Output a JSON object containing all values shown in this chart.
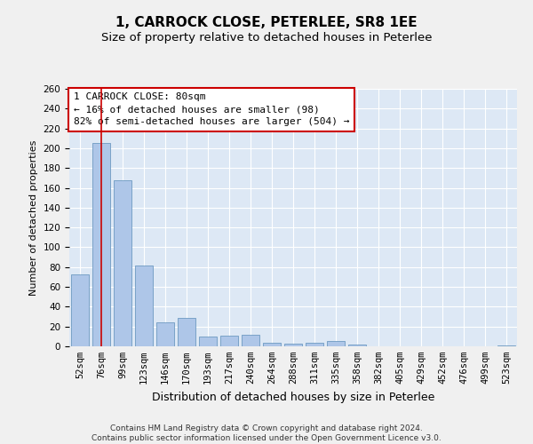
{
  "title": "1, CARROCK CLOSE, PETERLEE, SR8 1EE",
  "subtitle": "Size of property relative to detached houses in Peterlee",
  "xlabel": "Distribution of detached houses by size in Peterlee",
  "ylabel": "Number of detached properties",
  "categories": [
    "52sqm",
    "76sqm",
    "99sqm",
    "123sqm",
    "146sqm",
    "170sqm",
    "193sqm",
    "217sqm",
    "240sqm",
    "264sqm",
    "288sqm",
    "311sqm",
    "335sqm",
    "358sqm",
    "382sqm",
    "405sqm",
    "429sqm",
    "452sqm",
    "476sqm",
    "499sqm",
    "523sqm"
  ],
  "values": [
    73,
    205,
    168,
    82,
    24,
    29,
    10,
    11,
    12,
    4,
    3,
    4,
    5,
    2,
    0,
    0,
    0,
    0,
    0,
    0,
    1
  ],
  "bar_color": "#aec6e8",
  "bar_edge_color": "#5b8db8",
  "property_bar_index": 1,
  "property_line_color": "#cc0000",
  "ylim": [
    0,
    260
  ],
  "yticks": [
    0,
    20,
    40,
    60,
    80,
    100,
    120,
    140,
    160,
    180,
    200,
    220,
    240,
    260
  ],
  "annotation_text": "1 CARROCK CLOSE: 80sqm\n← 16% of detached houses are smaller (98)\n82% of semi-detached houses are larger (504) →",
  "annotation_box_color": "#ffffff",
  "annotation_box_edge_color": "#cc0000",
  "footer_text": "Contains HM Land Registry data © Crown copyright and database right 2024.\nContains public sector information licensed under the Open Government Licence v3.0.",
  "bg_color": "#dde8f5",
  "grid_color": "#ffffff",
  "fig_bg_color": "#f0f0f0",
  "title_fontsize": 11,
  "subtitle_fontsize": 9.5,
  "xlabel_fontsize": 9,
  "ylabel_fontsize": 8,
  "tick_fontsize": 7.5,
  "annotation_fontsize": 8,
  "footer_fontsize": 6.5
}
